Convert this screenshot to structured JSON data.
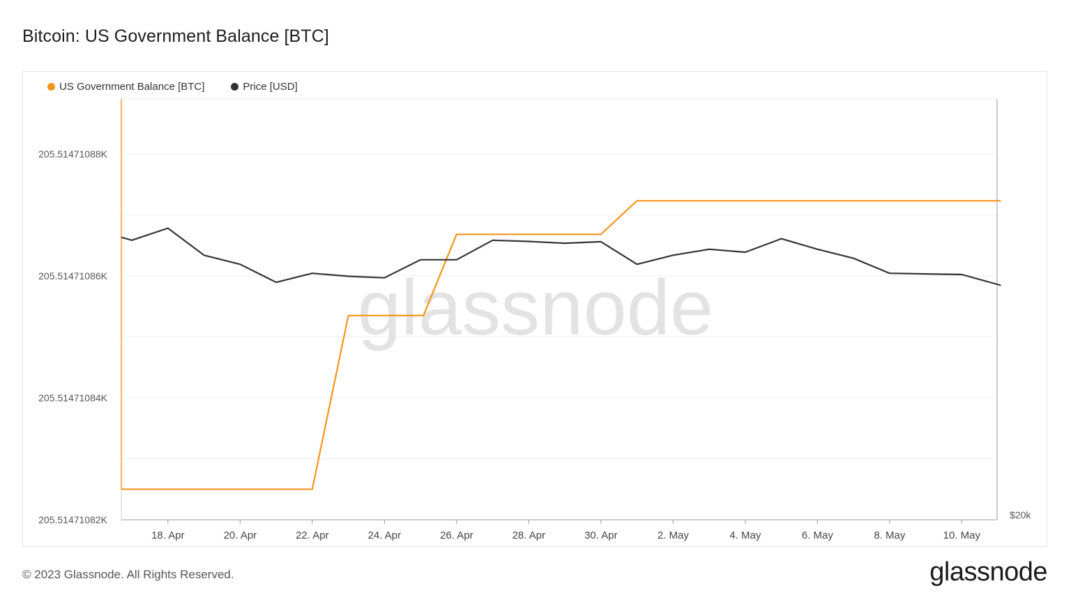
{
  "title": "Bitcoin: US Government Balance [BTC]",
  "footer": "© 2023 Glassnode. All Rights Reserved.",
  "brand": "glassnode",
  "watermark": "glassnode",
  "colors": {
    "balance": "#f7931a",
    "price": "#333333",
    "grid": "#eeeeee",
    "axis": "#999999"
  },
  "chart_data": {
    "type": "line",
    "legend": [
      {
        "name": "US Government Balance [BTC]",
        "color": "#f7931a"
      },
      {
        "name": "Price [USD]",
        "color": "#333333"
      }
    ],
    "x_ticks": [
      "18. Apr",
      "20. Apr",
      "22. Apr",
      "24. Apr",
      "26. Apr",
      "28. Apr",
      "30. Apr",
      "2. May",
      "4. May",
      "6. May",
      "8. May",
      "10. May"
    ],
    "y_left": {
      "ticks": [
        "205.51471082K",
        "205.51471084K",
        "205.51471086K",
        "205.51471088K"
      ]
    },
    "y_right": {
      "ticks": [
        "$20k"
      ]
    },
    "series": [
      {
        "name": "US Government Balance [BTC]",
        "axis": "left",
        "x": [
          "2023-04-16T17",
          "2023-04-22",
          "2023-04-23",
          "2023-04-25T02",
          "2023-04-26",
          "2023-04-30",
          "2023-05-01",
          "2023-05-11T02"
        ],
        "values": [
          205514.710825,
          205514.710825,
          205514.7108535,
          205514.7108535,
          205514.7108668,
          205514.7108668,
          205514.7108723,
          205514.7108723
        ]
      },
      {
        "name": "Price [USD]",
        "axis": "right",
        "x": [
          "2023-04-16T17",
          "2023-04-17",
          "2023-04-18",
          "2023-04-19",
          "2023-04-20",
          "2023-04-21",
          "2023-04-22",
          "2023-04-23",
          "2023-04-24",
          "2023-04-25",
          "2023-04-26",
          "2023-04-27",
          "2023-04-28",
          "2023-04-29",
          "2023-04-30",
          "2023-05-01",
          "2023-05-02",
          "2023-05-03",
          "2023-05-04",
          "2023-05-05",
          "2023-05-06",
          "2023-05-07",
          "2023-05-08",
          "2023-05-09",
          "2023-05-10",
          "2023-05-11T02"
        ],
        "values": [
          29400,
          29300,
          29700,
          28800,
          28500,
          27900,
          28200,
          28100,
          28050,
          28650,
          28650,
          29300,
          29260,
          29200,
          29250,
          28500,
          28800,
          29000,
          28900,
          29350,
          29000,
          28700,
          28200,
          28180,
          28160,
          27800
        ]
      }
    ]
  }
}
